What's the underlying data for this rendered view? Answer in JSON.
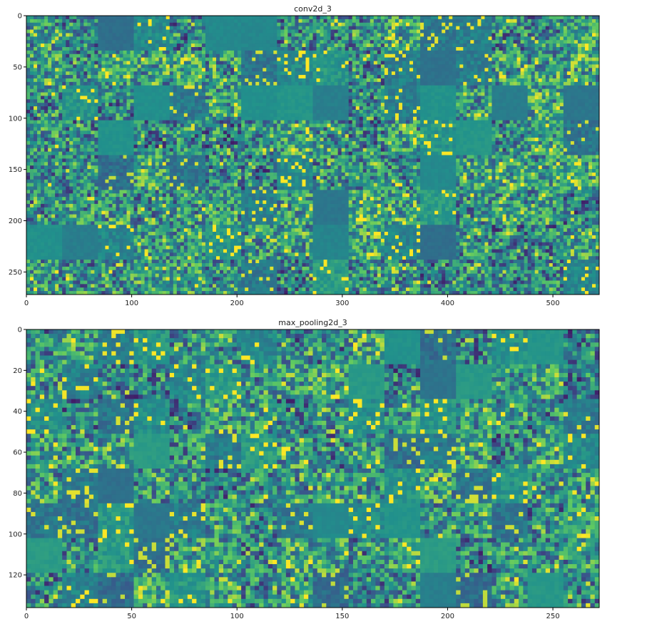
{
  "chart_data": [
    {
      "type": "heatmap",
      "title": "conv2d_3",
      "grid": false,
      "xlim": [
        0,
        544
      ],
      "ylim": [
        272,
        0
      ],
      "xticks": [
        0,
        100,
        200,
        300,
        400,
        500
      ],
      "yticks": [
        0,
        50,
        100,
        150,
        200,
        250
      ],
      "tiles": {
        "rows": 8,
        "cols": 16,
        "tile_size": 34
      },
      "colormap": "viridis",
      "colors": {
        "low": "#440154",
        "mid": "#21908d",
        "high": "#fde725"
      }
    },
    {
      "type": "heatmap",
      "title": "max_pooling2d_3",
      "grid": false,
      "xlim": [
        0,
        272
      ],
      "ylim": [
        136,
        0
      ],
      "xticks": [
        0,
        50,
        100,
        150,
        200,
        250
      ],
      "yticks": [
        0,
        20,
        40,
        60,
        80,
        100,
        120
      ],
      "tiles": {
        "rows": 8,
        "cols": 16,
        "tile_size": 17
      },
      "colormap": "viridis",
      "colors": {
        "low": "#440154",
        "mid": "#21908d",
        "high": "#fde725"
      }
    }
  ]
}
